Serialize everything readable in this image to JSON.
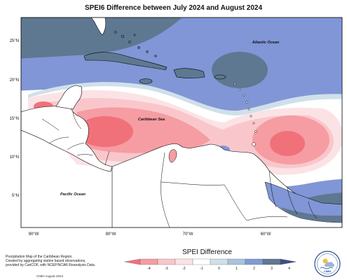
{
  "title": "SPEI6 Difference between July 2024 and August 2024",
  "map": {
    "lat_ticks": [
      "25°N",
      "20°N",
      "15°N",
      "10°N",
      "5°N"
    ],
    "lon_ticks": [
      "90°W",
      "80°W",
      "70°W",
      "60°W"
    ],
    "labels": {
      "atlantic": "Atlantic Ocean",
      "caribbean": "Caribbean Sea",
      "pacific": "Pacific Ocean"
    }
  },
  "legend": {
    "title": "SPEI Difference",
    "ticks": [
      "-4",
      "-3",
      "-2",
      "-1",
      "0",
      "1",
      "2",
      "3",
      "4"
    ],
    "colors": [
      "#f1717b",
      "#f59da2",
      "#f9c7cb",
      "#fbe3e5",
      "#ffffff",
      "#cfe0ea",
      "#a8c3dd",
      "#7f9bd3",
      "#5f7891",
      "#3f4d85"
    ]
  },
  "credit": {
    "lines": [
      "Precipitation Map of the Caribbean Region.",
      "Created by aggregating station based observations,",
      "provided by CariCOF, with NCEP/NCAR Reanalysis Data."
    ],
    "date": "CIMH August-2024"
  },
  "logo": {
    "text": "CIMH"
  }
}
